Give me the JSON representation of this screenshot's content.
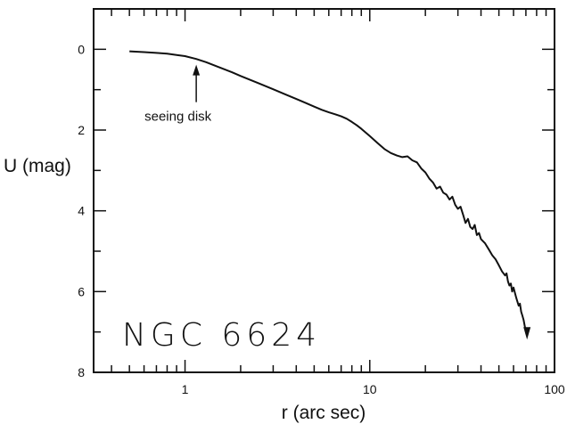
{
  "chart_data": {
    "type": "line",
    "title": "",
    "xlabel": "r (arc sec)",
    "ylabel": "U (mag)",
    "x_scale": "log",
    "xlim": [
      0.32,
      100
    ],
    "ylim": [
      8,
      -1
    ],
    "y_inverted": true,
    "x_tick_labels": [
      {
        "value": 1,
        "label": "1"
      },
      {
        "value": 10,
        "label": "10"
      },
      {
        "value": 100,
        "label": "100"
      }
    ],
    "y_tick_labels": [
      {
        "value": 0,
        "label": "0"
      },
      {
        "value": 2,
        "label": "2"
      },
      {
        "value": 4,
        "label": "4"
      },
      {
        "value": 6,
        "label": "6"
      },
      {
        "value": 8,
        "label": "8"
      }
    ],
    "annotations": [
      {
        "text": "seeing disk",
        "x": 1.15,
        "y": 0.25,
        "arrow": "up"
      },
      {
        "text": "NGC 6624",
        "x": 0.45,
        "y": 6.9
      }
    ],
    "grid": false,
    "series": [
      {
        "name": "",
        "x": [
          0.5,
          0.6,
          0.7,
          0.8,
          0.9,
          1.0,
          1.15,
          1.3,
          1.5,
          1.8,
          2.0,
          2.5,
          3.0,
          3.5,
          4.0,
          4.5,
          5.0,
          5.5,
          6.0,
          6.5,
          7.0,
          7.5,
          8.0,
          8.5,
          9.0,
          10.0,
          11.0,
          12.0,
          13.0,
          14.0,
          15.0,
          16.0,
          17.0,
          18.0,
          19.0,
          20.0,
          21.0,
          22.0,
          23.0,
          24.0,
          25.0,
          26.0,
          27.0,
          28.0,
          29.0,
          30.0,
          31.0,
          32.0,
          33.0,
          34.0,
          35.0,
          36.0,
          37.0,
          38.0,
          39.0,
          40.0,
          42.0,
          44.0,
          46.0,
          48.0,
          50.0,
          52.0,
          54.0,
          55.0,
          56.0,
          57.0,
          58.0,
          59.0,
          60.0,
          62.0,
          63.0,
          64.0,
          65.0,
          66.0,
          67.0,
          68.0,
          69.0,
          70.0,
          71.0
        ],
        "y": [
          0.05,
          0.07,
          0.09,
          0.11,
          0.14,
          0.17,
          0.24,
          0.32,
          0.43,
          0.57,
          0.66,
          0.84,
          0.99,
          1.12,
          1.23,
          1.33,
          1.42,
          1.5,
          1.56,
          1.61,
          1.66,
          1.72,
          1.8,
          1.88,
          1.97,
          2.15,
          2.32,
          2.47,
          2.57,
          2.63,
          2.67,
          2.65,
          2.75,
          2.8,
          2.95,
          3.05,
          3.2,
          3.3,
          3.45,
          3.4,
          3.55,
          3.6,
          3.72,
          3.65,
          3.85,
          3.95,
          3.9,
          4.1,
          4.3,
          4.2,
          4.4,
          4.45,
          4.35,
          4.6,
          4.55,
          4.7,
          4.8,
          4.95,
          5.1,
          5.2,
          5.35,
          5.5,
          5.6,
          5.55,
          5.75,
          5.85,
          5.8,
          6.0,
          5.9,
          6.15,
          6.25,
          6.35,
          6.3,
          6.5,
          6.6,
          6.7,
          6.85,
          7.0,
          7.1
        ]
      }
    ]
  }
}
